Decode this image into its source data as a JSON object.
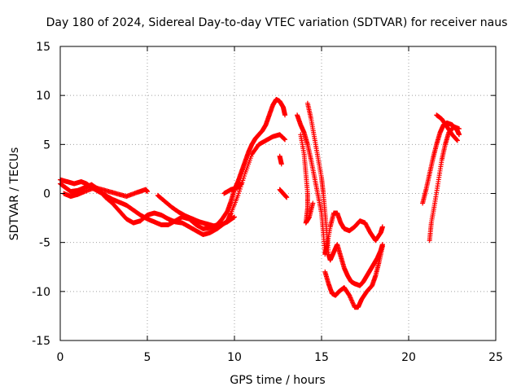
{
  "chart_data": {
    "type": "scatter",
    "title": "Day 180 of 2024, Sidereal Day-to-day VTEC variation (SDTVAR) for receiver naus",
    "xlabel": "GPS time / hours",
    "ylabel": "SDTVAR / TECUs",
    "xlim": [
      0,
      25
    ],
    "ylim": [
      -15,
      15
    ],
    "xticks": [
      0,
      5,
      10,
      15,
      20,
      25
    ],
    "yticks": [
      -15,
      -10,
      -5,
      0,
      5,
      10,
      15
    ],
    "grid": true,
    "marker": "+",
    "color": "#ff0000",
    "series": [
      {
        "name": "track-a",
        "points": [
          [
            0.0,
            1.4
          ],
          [
            0.4,
            1.2
          ],
          [
            0.8,
            1.0
          ],
          [
            1.2,
            1.2
          ],
          [
            1.5,
            1.0
          ],
          [
            1.8,
            0.6
          ],
          [
            2.2,
            0.2
          ],
          [
            2.6,
            -0.2
          ],
          [
            3.0,
            -0.6
          ],
          [
            3.4,
            -0.9
          ],
          [
            3.8,
            -1.2
          ],
          [
            4.2,
            -1.7
          ],
          [
            4.6,
            -2.2
          ],
          [
            5.0,
            -2.6
          ],
          [
            5.4,
            -2.9
          ],
          [
            5.8,
            -3.2
          ],
          [
            6.2,
            -3.2
          ],
          [
            6.6,
            -2.8
          ],
          [
            7.0,
            -2.4
          ],
          [
            7.4,
            -2.6
          ],
          [
            7.8,
            -3.2
          ],
          [
            8.2,
            -3.6
          ],
          [
            8.6,
            -3.5
          ],
          [
            9.0,
            -3.2
          ],
          [
            9.3,
            -2.6
          ],
          [
            9.6,
            -1.8
          ],
          [
            9.8,
            -0.8
          ],
          [
            10.0,
            0.4
          ],
          [
            10.2,
            1.2
          ],
          [
            10.4,
            2.2
          ],
          [
            10.6,
            3.2
          ],
          [
            10.8,
            4.2
          ],
          [
            11.0,
            5.0
          ],
          [
            11.2,
            5.6
          ],
          [
            11.4,
            6.0
          ],
          [
            11.6,
            6.4
          ],
          [
            11.8,
            7.0
          ],
          [
            12.0,
            8.0
          ],
          [
            12.2,
            9.0
          ],
          [
            12.4,
            9.6
          ],
          [
            12.6,
            9.4
          ],
          [
            12.8,
            8.8
          ],
          [
            12.9,
            8.0
          ]
        ]
      },
      {
        "name": "track-b",
        "points": [
          [
            0.0,
            1.0
          ],
          [
            0.3,
            0.6
          ],
          [
            0.6,
            0.2
          ],
          [
            1.0,
            0.3
          ],
          [
            1.4,
            0.6
          ],
          [
            1.8,
            0.9
          ],
          [
            2.2,
            0.4
          ],
          [
            2.6,
            -0.4
          ],
          [
            3.0,
            -1.0
          ],
          [
            3.4,
            -1.8
          ],
          [
            3.8,
            -2.6
          ],
          [
            4.2,
            -3.0
          ],
          [
            4.6,
            -2.8
          ],
          [
            5.0,
            -2.2
          ],
          [
            5.4,
            -2.0
          ],
          [
            5.8,
            -2.2
          ],
          [
            6.2,
            -2.6
          ],
          [
            6.6,
            -2.9
          ],
          [
            7.0,
            -3.0
          ],
          [
            7.4,
            -3.4
          ],
          [
            7.8,
            -3.8
          ],
          [
            8.2,
            -4.2
          ],
          [
            8.6,
            -4.0
          ],
          [
            9.0,
            -3.6
          ],
          [
            9.3,
            -3.2
          ],
          [
            9.6,
            -2.8
          ],
          [
            9.8,
            -2.0
          ],
          [
            10.2,
            -0.2
          ],
          [
            10.6,
            2.0
          ],
          [
            11.0,
            4.0
          ],
          [
            11.4,
            5.0
          ],
          [
            11.8,
            5.4
          ],
          [
            12.2,
            5.8
          ],
          [
            12.6,
            6.0
          ],
          [
            12.9,
            5.5
          ]
        ]
      },
      {
        "name": "track-c",
        "points": [
          [
            0.2,
            0.0
          ],
          [
            0.6,
            -0.3
          ],
          [
            1.0,
            -0.1
          ],
          [
            1.4,
            0.2
          ],
          [
            2.0,
            0.6
          ],
          [
            2.6,
            0.3
          ],
          [
            3.2,
            0.0
          ],
          [
            3.8,
            -0.3
          ],
          [
            4.4,
            0.1
          ],
          [
            4.9,
            0.4
          ],
          [
            5.0,
            0.2
          ]
        ]
      },
      {
        "name": "track-d",
        "points": [
          [
            5.6,
            -0.2
          ],
          [
            6.0,
            -0.8
          ],
          [
            6.4,
            -1.4
          ],
          [
            6.8,
            -1.9
          ],
          [
            7.2,
            -2.3
          ],
          [
            7.6,
            -2.6
          ],
          [
            8.0,
            -2.9
          ],
          [
            8.4,
            -3.1
          ],
          [
            8.8,
            -3.3
          ],
          [
            9.2,
            -3.2
          ],
          [
            9.6,
            -2.9
          ],
          [
            10.0,
            -2.4
          ]
        ]
      },
      {
        "name": "track-e",
        "points": [
          [
            9.4,
            0.0
          ],
          [
            9.8,
            0.4
          ],
          [
            10.2,
            0.6
          ],
          [
            10.4,
            1.0
          ]
        ]
      },
      {
        "name": "track-f",
        "points": [
          [
            12.6,
            3.8
          ],
          [
            12.7,
            3.0
          ]
        ]
      },
      {
        "name": "track-g",
        "points": [
          [
            12.6,
            0.4
          ],
          [
            12.8,
            0.0
          ],
          [
            13.0,
            -0.4
          ]
        ]
      },
      {
        "name": "track-h",
        "points": [
          [
            13.8,
            6.0
          ],
          [
            14.0,
            4.0
          ],
          [
            14.1,
            2.0
          ],
          [
            14.2,
            0.0
          ],
          [
            14.2,
            -1.5
          ],
          [
            14.1,
            -3.0
          ],
          [
            14.3,
            -2.4
          ],
          [
            14.5,
            -1.0
          ]
        ]
      },
      {
        "name": "track-i",
        "points": [
          [
            13.6,
            8.0
          ],
          [
            13.8,
            7.0
          ],
          [
            14.0,
            6.2
          ],
          [
            14.2,
            5.0
          ],
          [
            14.4,
            3.4
          ],
          [
            14.6,
            1.6
          ],
          [
            14.8,
            -0.2
          ],
          [
            15.0,
            -2.0
          ],
          [
            15.1,
            -4.0
          ],
          [
            15.2,
            -6.2
          ],
          [
            15.3,
            -5.4
          ],
          [
            15.5,
            -3.4
          ],
          [
            15.7,
            -2.0
          ],
          [
            15.9,
            -2.0
          ],
          [
            16.1,
            -3.0
          ],
          [
            16.3,
            -3.6
          ],
          [
            16.6,
            -3.8
          ],
          [
            16.9,
            -3.4
          ],
          [
            17.2,
            -2.8
          ],
          [
            17.5,
            -3.0
          ],
          [
            17.8,
            -4.0
          ],
          [
            18.1,
            -4.8
          ],
          [
            18.4,
            -4.0
          ],
          [
            18.5,
            -3.4
          ]
        ]
      },
      {
        "name": "track-j",
        "points": [
          [
            14.2,
            9.2
          ],
          [
            14.4,
            7.6
          ],
          [
            14.6,
            5.6
          ],
          [
            14.8,
            3.6
          ],
          [
            15.0,
            1.6
          ],
          [
            15.1,
            0.0
          ],
          [
            15.2,
            -2.0
          ],
          [
            15.3,
            -4.0
          ],
          [
            15.4,
            -6.2
          ],
          [
            15.5,
            -6.8
          ],
          [
            15.7,
            -6.0
          ],
          [
            15.9,
            -5.2
          ],
          [
            16.1,
            -6.4
          ],
          [
            16.3,
            -7.6
          ],
          [
            16.5,
            -8.4
          ],
          [
            16.7,
            -9.0
          ],
          [
            16.9,
            -9.2
          ],
          [
            17.2,
            -9.4
          ],
          [
            17.4,
            -9.0
          ],
          [
            17.6,
            -8.4
          ],
          [
            17.8,
            -7.8
          ],
          [
            18.0,
            -7.2
          ],
          [
            18.2,
            -6.6
          ],
          [
            18.4,
            -5.8
          ],
          [
            18.5,
            -5.2
          ]
        ]
      },
      {
        "name": "track-k",
        "points": [
          [
            15.2,
            -8.0
          ],
          [
            15.4,
            -9.2
          ],
          [
            15.6,
            -10.2
          ],
          [
            15.8,
            -10.4
          ],
          [
            16.0,
            -10.0
          ],
          [
            16.3,
            -9.6
          ],
          [
            16.6,
            -10.4
          ],
          [
            16.9,
            -11.6
          ],
          [
            17.1,
            -11.6
          ],
          [
            17.3,
            -10.8
          ],
          [
            17.6,
            -10.0
          ],
          [
            17.9,
            -9.4
          ],
          [
            18.1,
            -8.4
          ],
          [
            18.3,
            -7.0
          ],
          [
            18.5,
            -5.4
          ]
        ]
      },
      {
        "name": "track-l",
        "points": [
          [
            20.8,
            -1.0
          ],
          [
            21.0,
            0.4
          ],
          [
            21.2,
            2.0
          ],
          [
            21.4,
            3.6
          ],
          [
            21.6,
            5.0
          ],
          [
            21.8,
            6.2
          ],
          [
            22.0,
            7.0
          ],
          [
            22.2,
            7.2
          ],
          [
            22.5,
            7.0
          ],
          [
            22.8,
            6.4
          ],
          [
            22.9,
            6.0
          ]
        ]
      },
      {
        "name": "track-m",
        "points": [
          [
            21.2,
            -4.8
          ],
          [
            21.3,
            -3.0
          ],
          [
            21.5,
            -1.0
          ],
          [
            21.7,
            1.2
          ],
          [
            21.9,
            3.4
          ],
          [
            22.1,
            5.0
          ],
          [
            22.3,
            6.2
          ],
          [
            22.6,
            6.8
          ],
          [
            22.9,
            6.6
          ]
        ]
      },
      {
        "name": "track-n",
        "points": [
          [
            21.6,
            8.0
          ],
          [
            21.9,
            7.6
          ],
          [
            22.2,
            6.8
          ],
          [
            22.5,
            6.0
          ],
          [
            22.8,
            5.4
          ]
        ]
      }
    ]
  }
}
